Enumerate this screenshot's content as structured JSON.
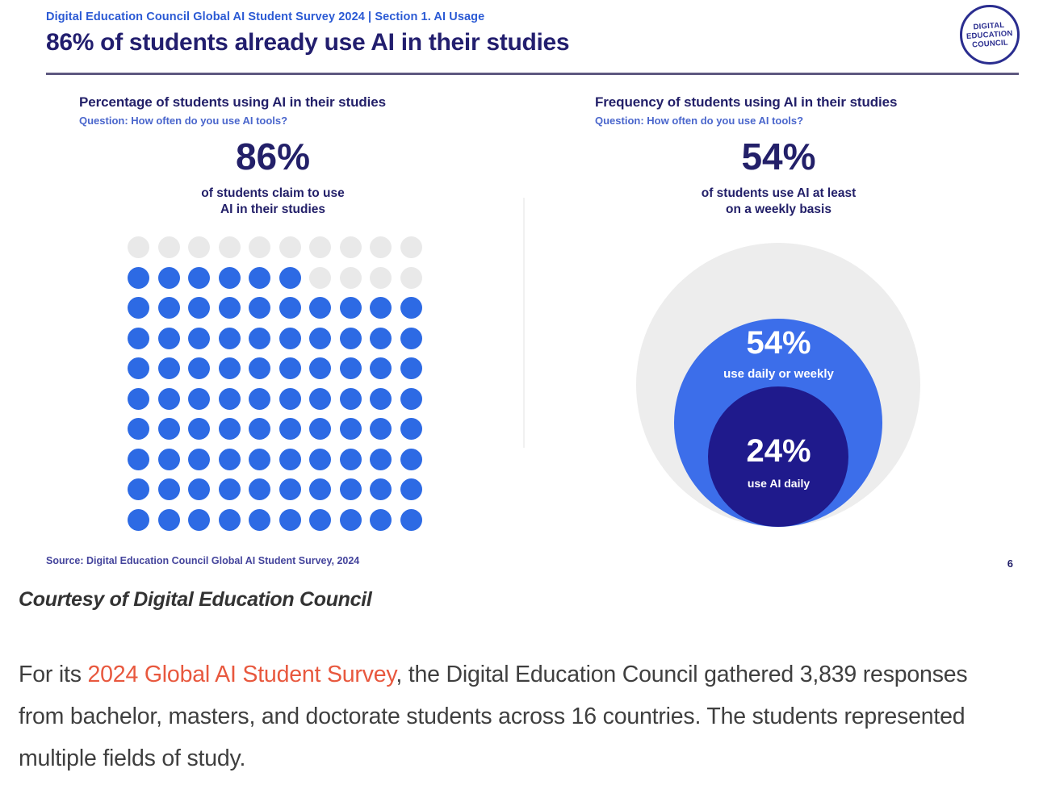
{
  "slide": {
    "kicker": "Digital Education Council Global AI Student Survey 2024 | Section 1. AI Usage",
    "title": "86% of students already use AI in their studies",
    "logo": {
      "line1": "DIGITAL",
      "line2": "EDUCATION",
      "line3": "COUNCIL"
    },
    "left_panel": {
      "heading": "Percentage of students using AI in their studies",
      "question": "Question: How often do you use AI tools?",
      "stat_value": "86%",
      "stat_caption_line1": "of students claim to use",
      "stat_caption_line2": "AI in their studies"
    },
    "right_panel": {
      "heading": "Frequency of students using AI in their studies",
      "question": "Question: How often do you use AI tools?",
      "stat_value": "54%",
      "stat_caption_line1": "of students use AI at least",
      "stat_caption_line2": "on a weekly basis",
      "mid_circle_value": "54%",
      "mid_circle_label": "use daily or weekly",
      "inner_circle_value": "24%",
      "inner_circle_label": "use AI daily"
    },
    "source": "Source: Digital Education Council Global AI Student Survey, 2024",
    "page_number": "6"
  },
  "caption": "Courtesy of Digital Education Council",
  "paragraph": {
    "pre_link": "For its ",
    "link": "2024 Global AI Student Survey",
    "post_link": ", the Digital Education Council gathered 3,839 responses from bachelor, masters, and doctorate students across 16 countries. The students represented multiple fields of study."
  },
  "colors": {
    "kicker_blue": "#2b5ad4",
    "title_navy": "#221e6e",
    "waffle_fill": "#2d6ae4",
    "waffle_empty": "#e9e9e9",
    "circle_outer_gray": "#ededed",
    "circle_mid_blue": "#3c6eea",
    "circle_inner_navy": "#1f1a8c",
    "link_orange": "#e8583e"
  },
  "chart_data": [
    {
      "type": "waffle",
      "title": "Percentage of students using AI in their studies",
      "subtitle": "Question: How often do you use AI tools?",
      "grid": {
        "rows": 10,
        "cols": 10,
        "filled": 86,
        "total": 100
      },
      "series": [
        {
          "name": "students using AI in their studies",
          "value": 86
        },
        {
          "name": "students not using AI",
          "value": 14
        }
      ],
      "annotation": "86% of students claim to use AI in their studies",
      "fill_color": "#2d6ae4",
      "empty_color": "#e9e9e9"
    },
    {
      "type": "nested_circles",
      "title": "Frequency of students using AI in their studies",
      "subtitle": "Question: How often do you use AI tools?",
      "series": [
        {
          "name": "all students surveyed",
          "value": 100,
          "color": "#ededed"
        },
        {
          "name": "use daily or weekly",
          "value": 54,
          "color": "#3c6eea"
        },
        {
          "name": "use AI daily",
          "value": 24,
          "color": "#1f1a8c"
        }
      ],
      "annotation": "54% of students use AI at least on a weekly basis"
    }
  ]
}
